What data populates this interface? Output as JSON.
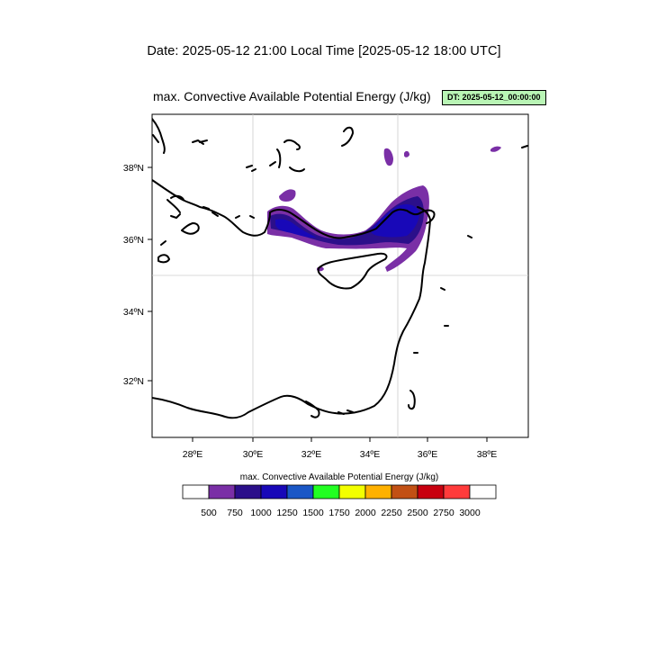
{
  "header": {
    "date_line": "Date: 2025-05-12  21:00 Local Time [2025-05-12  18:00 UTC]",
    "map_title": "max. Convective Available Potential Energy   (J/kg)",
    "dt_badge": "DT: 2025-05-12_00:00:00"
  },
  "map": {
    "lon_ticks": [
      "28ºE",
      "30ºE",
      "32ºE",
      "34ºE",
      "36ºE",
      "38ºE"
    ],
    "lat_ticks": [
      "38ºN",
      "36ºN",
      "34ºN",
      "32ºN"
    ]
  },
  "colorbar": {
    "title": "max. Convective Available Potential Energy  (J/kg)",
    "labels": [
      "500",
      "750",
      "1000",
      "1250",
      "1500",
      "1750",
      "2000",
      "2250",
      "2500",
      "2750",
      "3000"
    ],
    "colors": [
      "#ffffff",
      "#7a2fa6",
      "#2b0f8a",
      "#1808b8",
      "#1a57c6",
      "#22ff22",
      "#f3ff00",
      "#ffb100",
      "#c25014",
      "#c8000f",
      "#ff3b3b",
      "#ffffff"
    ]
  }
}
